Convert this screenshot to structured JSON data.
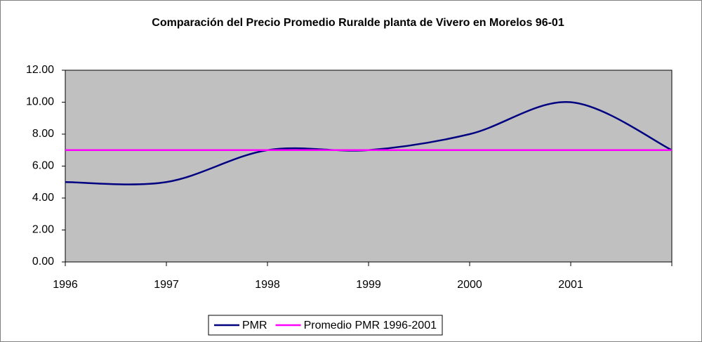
{
  "chart_data": {
    "type": "line",
    "title": "Comparación del Precio Promedio Ruralde planta de Vivero en Morelos  96-01",
    "categories": [
      "1996",
      "1997",
      "1998",
      "1999",
      "2000",
      "2001",
      null
    ],
    "series": [
      {
        "name": "PMR",
        "color": "#000080",
        "smooth": true,
        "values": [
          5,
          5,
          7,
          7,
          8,
          10,
          7
        ]
      },
      {
        "name": "Promedio PMR 1996-2001",
        "color": "#ff00ff",
        "smooth": false,
        "values": [
          7,
          7,
          7,
          7,
          7,
          7,
          7
        ]
      }
    ],
    "ylim": [
      0,
      12
    ],
    "yticks": [
      {
        "value": 0,
        "label": "0.00"
      },
      {
        "value": 2,
        "label": "2.00"
      },
      {
        "value": 4,
        "label": "4.00"
      },
      {
        "value": 6,
        "label": "6.00"
      },
      {
        "value": 8,
        "label": "8.00"
      },
      {
        "value": 10,
        "label": "10.00"
      },
      {
        "value": 12,
        "label": "12.00"
      }
    ],
    "plot_background": "#c0c0c0",
    "legend": "bottom"
  }
}
